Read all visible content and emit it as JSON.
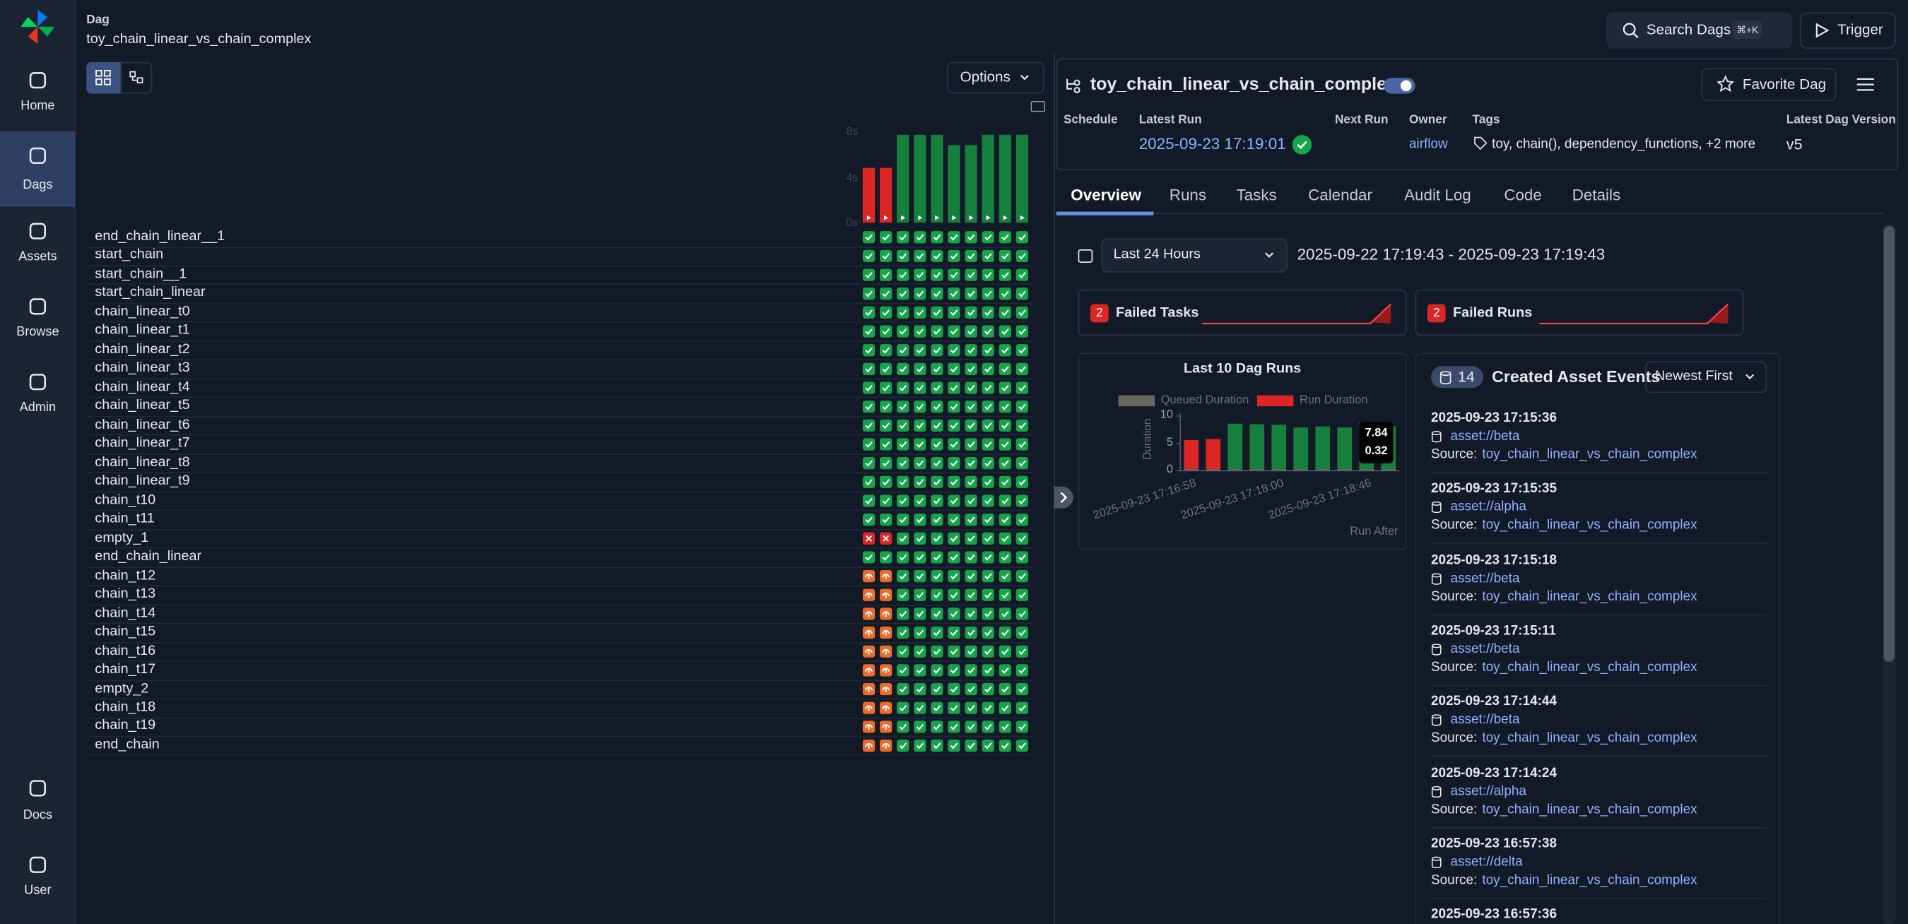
{
  "sidebar": {
    "nav": [
      "Home",
      "Dags",
      "Assets",
      "Browse",
      "Admin"
    ],
    "footer": [
      "Docs",
      "User"
    ]
  },
  "header": {
    "breadcrumb": "Dag",
    "dag_id": "toy_chain_linear_vs_chain_complex",
    "search": "Search Dags",
    "shortcut": "⌘+K",
    "trigger": "Trigger"
  },
  "grid": {
    "options": "Options",
    "duration_chart": {
      "type": "bar",
      "ylim": [
        0,
        8
      ],
      "yticks": [
        {
          "value": 0,
          "label": "0s"
        },
        {
          "value": 4,
          "label": "4s"
        },
        {
          "value": 8,
          "label": "8s"
        }
      ],
      "values": [
        4.8,
        4.8,
        7.7,
        7.7,
        7.7,
        6.8,
        6.8,
        7.7,
        7.7,
        7.7
      ]
    },
    "tasks": [
      "end_chain_linear__1",
      "start_chain",
      "start_chain__1",
      "start_chain_linear",
      "chain_linear_t0",
      "chain_linear_t1",
      "chain_linear_t2",
      "chain_linear_t3",
      "chain_linear_t4",
      "chain_linear_t5",
      "chain_linear_t6",
      "chain_linear_t7",
      "chain_linear_t8",
      "chain_linear_t9",
      "chain_t10",
      "chain_t11",
      "empty_1",
      "end_chain_linear",
      "chain_t12",
      "chain_t13",
      "chain_t14",
      "chain_t15",
      "chain_t16",
      "chain_t17",
      "empty_2",
      "chain_t18",
      "chain_t19",
      "end_chain"
    ]
  },
  "details": {
    "title": "toy_chain_linear_vs_chain_complex",
    "favorite": "Favorite Dag",
    "fields": [
      {
        "label": "Schedule"
      },
      {
        "label": "Latest Run",
        "value": "2025-09-23 17:19:01"
      },
      {
        "label": "Next Run"
      },
      {
        "label": "Owner",
        "value": "airflow"
      },
      {
        "label": "Tags",
        "value": "toy, chain(), dependency_functions, +2 more"
      },
      {
        "label": "Latest Dag Version",
        "value": "v5"
      }
    ],
    "tabs": [
      "Overview",
      "Runs",
      "Tasks",
      "Calendar",
      "Audit Log",
      "Code",
      "Details"
    ]
  },
  "overview": {
    "range_button": "Last 24 Hours",
    "range": "2025-09-22 17:19:43 - 2025-09-23 17:19:43",
    "failed_tasks": {
      "count": 2,
      "label": "Failed Tasks"
    },
    "failed_runs": {
      "count": 2,
      "label": "Failed Runs"
    },
    "runs_chart": {
      "type": "bar",
      "title": "Last 10 Dag Runs",
      "y_label": "Duration",
      "x_label": "Run After",
      "ylim": [
        0,
        10
      ],
      "yticks": [
        0,
        5,
        10
      ],
      "categories": [
        "2025-09-23 17:16:58",
        null,
        null,
        null,
        "2025-09-23 17:18:00",
        null,
        null,
        null,
        "2025-09-23 17:18:46",
        null
      ],
      "series": [
        {
          "name": "Queued Duration",
          "color": "#6b6560",
          "values": [
            0.3,
            0.3,
            0.3,
            0.3,
            0.3,
            0.3,
            0.3,
            0.3,
            0.3,
            0.32
          ]
        },
        {
          "name": "Run Duration",
          "color": "#dc2626",
          "values": [
            5.3,
            5.5,
            8.3,
            8.2,
            8.1,
            7.6,
            7.8,
            7.6,
            8.4,
            7.84
          ],
          "bar_colors": [
            "#dc2626",
            "#dc2626",
            "#15803d",
            "#15803d",
            "#15803d",
            "#15803d",
            "#15803d",
            "#15803d",
            "#15803d",
            "#15803d"
          ]
        }
      ]
    },
    "assets": {
      "count": 14,
      "title": "Created Asset Events",
      "sort": "Newest First",
      "events": [
        {
          "time": "2025-09-23 17:15:36",
          "asset": "asset://beta",
          "source_label": "Source:",
          "source": "toy_chain_linear_vs_chain_complex"
        },
        {
          "time": "2025-09-23 17:15:35",
          "asset": "asset://alpha",
          "source_label": "Source:",
          "source": "toy_chain_linear_vs_chain_complex"
        },
        {
          "time": "2025-09-23 17:15:18",
          "asset": "asset://beta",
          "source_label": "Source:",
          "source": "toy_chain_linear_vs_chain_complex"
        },
        {
          "time": "2025-09-23 17:15:11",
          "asset": "asset://beta",
          "source_label": "Source:",
          "source": "toy_chain_linear_vs_chain_complex"
        },
        {
          "time": "2025-09-23 17:14:44",
          "asset": "asset://beta",
          "source_label": "Source:",
          "source": "toy_chain_linear_vs_chain_complex"
        },
        {
          "time": "2025-09-23 17:14:24",
          "asset": "asset://alpha",
          "source_label": "Source:",
          "source": "toy_chain_linear_vs_chain_complex"
        },
        {
          "time": "2025-09-23 16:57:38",
          "asset": "asset://delta",
          "source_label": "Source:",
          "source": "toy_chain_linear_vs_chain_complex"
        },
        {
          "time": "2025-09-23 16:57:36"
        }
      ]
    }
  }
}
